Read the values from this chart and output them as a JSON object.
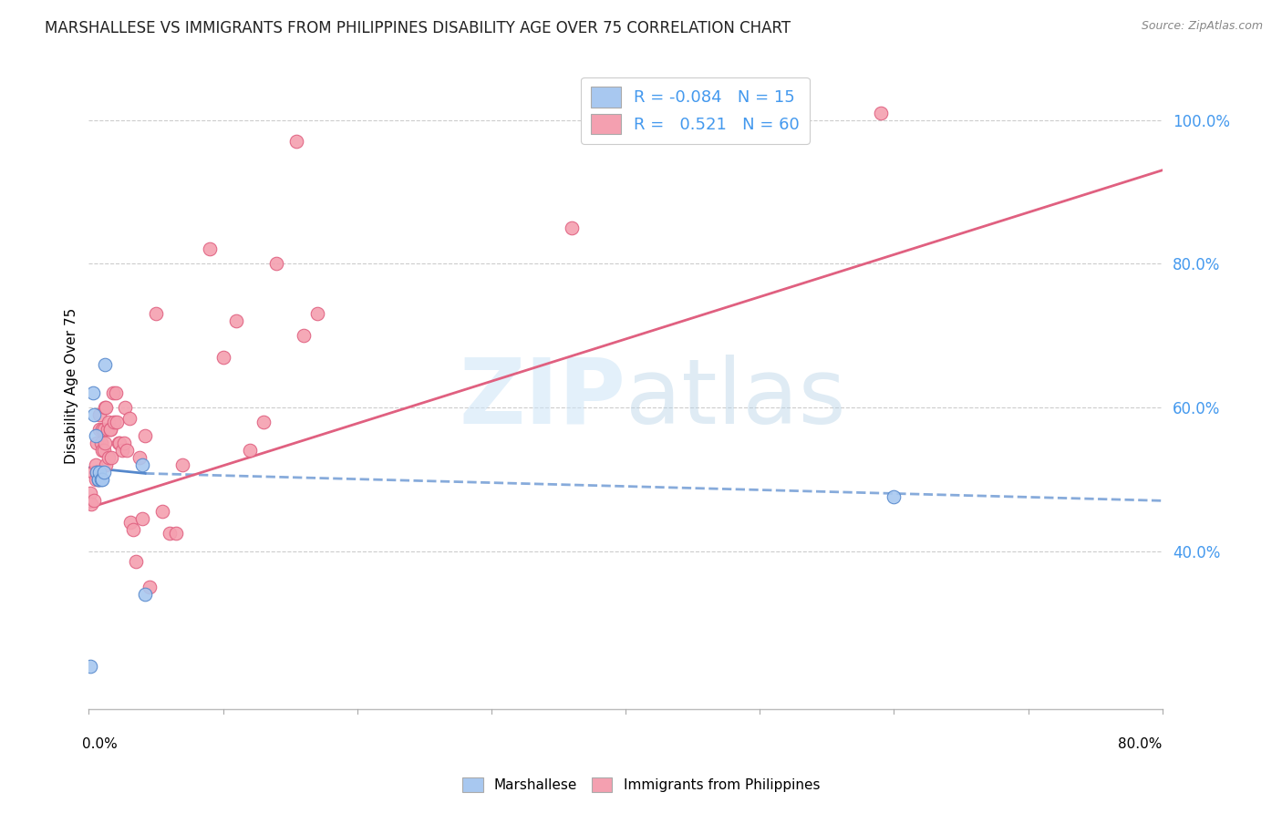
{
  "title": "MARSHALLESE VS IMMIGRANTS FROM PHILIPPINES DISABILITY AGE OVER 75 CORRELATION CHART",
  "source": "Source: ZipAtlas.com",
  "ylabel": "Disability Age Over 75",
  "xlim": [
    0.0,
    0.8
  ],
  "ylim": [
    0.18,
    1.08
  ],
  "yticks": [
    0.4,
    0.6,
    0.8,
    1.0
  ],
  "ytick_labels": [
    "40.0%",
    "60.0%",
    "80.0%",
    "100.0%"
  ],
  "legend_r_marshallese": "-0.084",
  "legend_n_marshallese": "15",
  "legend_r_philippines": "0.521",
  "legend_n_philippines": "60",
  "marshallese_color": "#a8c8f0",
  "philippines_color": "#f4a0b0",
  "trendline_marshallese_color": "#5588cc",
  "trendline_philippines_color": "#e06080",
  "marshallese_x": [
    0.001,
    0.003,
    0.004,
    0.005,
    0.006,
    0.007,
    0.007,
    0.008,
    0.009,
    0.01,
    0.011,
    0.012,
    0.04,
    0.042,
    0.6
  ],
  "marshallese_y": [
    0.24,
    0.62,
    0.59,
    0.56,
    0.51,
    0.5,
    0.5,
    0.51,
    0.5,
    0.5,
    0.51,
    0.66,
    0.52,
    0.34,
    0.475
  ],
  "philippines_x": [
    0.001,
    0.002,
    0.003,
    0.004,
    0.005,
    0.005,
    0.006,
    0.006,
    0.007,
    0.008,
    0.008,
    0.009,
    0.01,
    0.01,
    0.011,
    0.011,
    0.012,
    0.012,
    0.013,
    0.013,
    0.014,
    0.015,
    0.015,
    0.016,
    0.016,
    0.017,
    0.018,
    0.019,
    0.02,
    0.021,
    0.022,
    0.023,
    0.025,
    0.026,
    0.027,
    0.028,
    0.03,
    0.031,
    0.033,
    0.035,
    0.038,
    0.04,
    0.042,
    0.045,
    0.05,
    0.055,
    0.06,
    0.065,
    0.07,
    0.09,
    0.1,
    0.11,
    0.12,
    0.13,
    0.14,
    0.155,
    0.16,
    0.17,
    0.36,
    0.59
  ],
  "philippines_y": [
    0.48,
    0.465,
    0.51,
    0.47,
    0.5,
    0.52,
    0.51,
    0.55,
    0.5,
    0.57,
    0.59,
    0.55,
    0.54,
    0.57,
    0.54,
    0.57,
    0.55,
    0.6,
    0.52,
    0.6,
    0.57,
    0.53,
    0.58,
    0.57,
    0.57,
    0.53,
    0.62,
    0.58,
    0.62,
    0.58,
    0.55,
    0.55,
    0.54,
    0.55,
    0.6,
    0.54,
    0.585,
    0.44,
    0.43,
    0.385,
    0.53,
    0.445,
    0.56,
    0.35,
    0.73,
    0.455,
    0.425,
    0.425,
    0.52,
    0.82,
    0.67,
    0.72,
    0.54,
    0.58,
    0.8,
    0.97,
    0.7,
    0.73,
    0.85,
    1.01
  ],
  "trendline_marsh_x0": 0.0,
  "trendline_marsh_x1": 0.042,
  "trendline_marsh_x2": 0.8,
  "trendline_marsh_y0": 0.516,
  "trendline_marsh_y1": 0.508,
  "trendline_marsh_y2": 0.47,
  "trendline_phil_x0": 0.0,
  "trendline_phil_x1": 0.8,
  "trendline_phil_y0": 0.46,
  "trendline_phil_y1": 0.93
}
